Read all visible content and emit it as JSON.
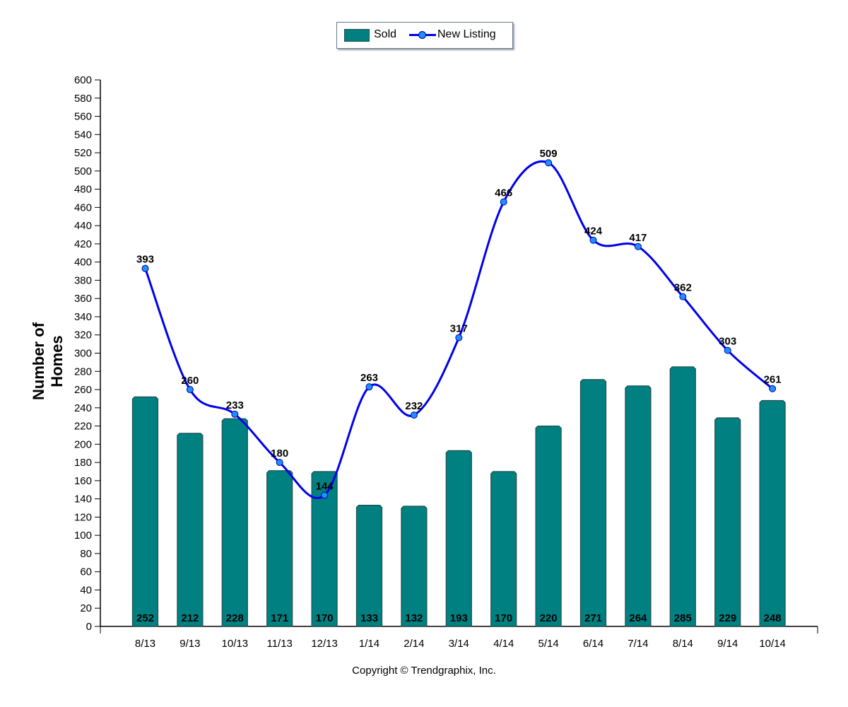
{
  "legend": {
    "sold_label": "Sold",
    "new_listing_label": "New Listing"
  },
  "footer": {
    "copyright": "Copyright © Trendgraphix, Inc."
  },
  "colors": {
    "sold_bar": "#008080",
    "sold_bar_edge": "#1f4f4f",
    "new_listing_line": "#0000ee",
    "new_listing_marker": "#1e90ff"
  },
  "chart_data": {
    "type": "bar",
    "ylabel": "Number of Homes",
    "xlabel": "",
    "title": "",
    "ylim": [
      0,
      600
    ],
    "ytick_step": 20,
    "grid": false,
    "legend_position": "top-center",
    "categories": [
      "8/13",
      "9/13",
      "10/13",
      "11/13",
      "12/13",
      "1/14",
      "2/14",
      "3/14",
      "4/14",
      "5/14",
      "6/14",
      "7/14",
      "8/14",
      "9/14",
      "10/14"
    ],
    "series": [
      {
        "name": "Sold",
        "type": "bar",
        "values": [
          252,
          212,
          228,
          171,
          170,
          133,
          132,
          193,
          170,
          220,
          271,
          264,
          285,
          229,
          248
        ]
      },
      {
        "name": "New Listing",
        "type": "line",
        "values": [
          393,
          260,
          233,
          180,
          144,
          263,
          232,
          317,
          466,
          509,
          424,
          417,
          362,
          303,
          261
        ]
      }
    ]
  }
}
